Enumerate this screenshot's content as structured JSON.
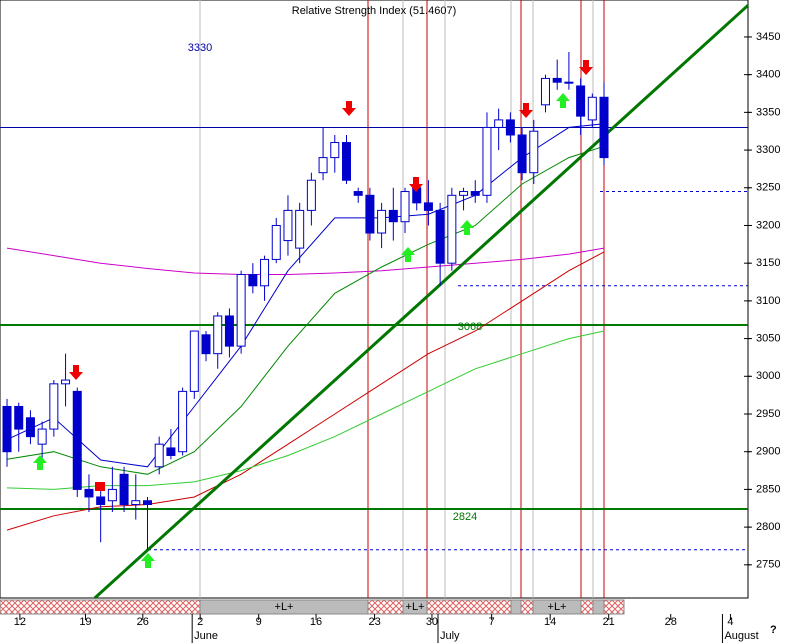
{
  "chart_data": {
    "type": "candlestick",
    "title": "Relative Strength Index (51.4607)",
    "x": [
      0,
      1,
      2,
      3,
      4,
      5,
      6,
      7,
      8,
      9,
      10,
      11,
      12,
      13,
      14,
      15,
      16,
      17,
      18,
      19,
      20,
      21,
      22,
      23,
      24,
      25,
      26,
      27,
      28,
      29,
      30,
      31,
      32,
      33,
      34,
      35,
      36,
      37,
      38,
      39,
      40,
      41,
      42,
      43,
      44,
      45,
      46,
      47,
      48,
      49,
      50,
      51
    ],
    "open": [
      2960,
      2960,
      2945,
      2910,
      2930,
      2990,
      2980,
      2850,
      2840,
      2835,
      2870,
      2830,
      2835,
      2880,
      2905,
      2900,
      2980,
      3055,
      3030,
      3080,
      3040,
      3135,
      3120,
      3155,
      3180,
      3170,
      3220,
      3270,
      3290,
      3310,
      3245,
      3240,
      3190,
      3220,
      3205,
      3250,
      3230,
      3220,
      3150,
      3240,
      3245,
      3240,
      3330,
      3340,
      3320,
      3270,
      3360,
      3395,
      3390,
      3385,
      3340,
      3370
    ],
    "high": [
      2970,
      2965,
      2955,
      2940,
      2995,
      3030,
      2985,
      2870,
      2850,
      2880,
      2880,
      2870,
      2840,
      2920,
      2930,
      2985,
      3060,
      3060,
      3085,
      3090,
      3140,
      3150,
      3160,
      3210,
      3240,
      3230,
      3270,
      3330,
      3320,
      3320,
      3250,
      3250,
      3230,
      3250,
      3250,
      3260,
      3260,
      3230,
      3250,
      3250,
      3260,
      3350,
      3355,
      3350,
      3330,
      3340,
      3400,
      3420,
      3430,
      3395,
      3375,
      3390
    ],
    "low": [
      2880,
      2900,
      2910,
      2890,
      2920,
      2960,
      2840,
      2820,
      2780,
      2820,
      2820,
      2810,
      2770,
      2870,
      2890,
      2895,
      2970,
      3020,
      3010,
      3025,
      3030,
      3110,
      3100,
      3150,
      3160,
      3150,
      3200,
      3260,
      3270,
      3255,
      3230,
      3180,
      3170,
      3180,
      3190,
      3220,
      3200,
      3120,
      3140,
      3220,
      3230,
      3230,
      3300,
      3310,
      3260,
      3255,
      3350,
      3380,
      3380,
      3320,
      3330,
      3280
    ],
    "close": [
      2900,
      2930,
      2920,
      2930,
      2990,
      2995,
      2850,
      2840,
      2830,
      2850,
      2830,
      2835,
      2830,
      2910,
      2895,
      2980,
      3060,
      3030,
      3080,
      3040,
      3135,
      3120,
      3155,
      3200,
      3220,
      3220,
      3260,
      3290,
      3310,
      3260,
      3240,
      3190,
      3220,
      3205,
      3245,
      3230,
      3220,
      3150,
      3240,
      3245,
      3240,
      3330,
      3340,
      3320,
      3270,
      3325,
      3395,
      3390,
      3390,
      3345,
      3370,
      3290
    ],
    "color": "#0000cc",
    "lines": [
      {
        "color": "#cc00cc",
        "x": [
          0,
          4,
          8,
          12,
          16,
          20,
          24,
          28,
          32,
          36,
          40,
          44,
          48,
          51
        ],
        "values": [
          3170,
          3160,
          3150,
          3143,
          3137,
          3135,
          3135,
          3137,
          3140,
          3145,
          3150,
          3155,
          3162,
          3170
        ]
      },
      {
        "color": "#0000cc",
        "x": [
          0,
          4,
          8,
          12,
          16,
          20,
          24,
          28,
          32,
          36,
          40,
          44,
          48,
          51
        ],
        "values": [
          2916,
          2945,
          2889,
          2880,
          2960,
          3040,
          3140,
          3210,
          3210,
          3215,
          3240,
          3290,
          3330,
          3335
        ]
      },
      {
        "color": "#008800",
        "x": [
          0,
          4,
          8,
          12,
          16,
          20,
          24,
          28,
          32,
          36,
          40,
          44,
          48,
          51
        ],
        "values": [
          2890,
          2900,
          2880,
          2870,
          2900,
          2960,
          3040,
          3110,
          3145,
          3175,
          3200,
          3255,
          3290,
          3305
        ]
      },
      {
        "color": "#cc0000",
        "x": [
          0,
          4,
          8,
          12,
          16,
          20,
          24,
          28,
          32,
          36,
          40,
          44,
          48,
          51
        ],
        "values": [
          2796,
          2815,
          2827,
          2830,
          2840,
          2870,
          2910,
          2950,
          2990,
          3030,
          3060,
          3100,
          3140,
          3165
        ]
      },
      {
        "color": "#33cc33",
        "x": [
          0,
          4,
          8,
          12,
          16,
          20,
          24,
          28,
          32,
          36,
          40,
          44,
          48,
          51
        ],
        "values": [
          2852,
          2850,
          2855,
          2855,
          2860,
          2875,
          2895,
          2920,
          2950,
          2980,
          3010,
          3030,
          3050,
          3060
        ]
      }
    ],
    "trendline": {
      "color": "#007700",
      "x": [
        7.5,
        63.3
      ],
      "values": [
        2706,
        3492
      ]
    },
    "levels": [
      {
        "value": 3330,
        "label": "3330",
        "color": "#0000aa"
      },
      {
        "value": 3068,
        "label": "3068",
        "color": "#007700"
      },
      {
        "value": 2824,
        "label": "2824",
        "color": "#007700"
      }
    ],
    "dashed_levels": [
      3245,
      3120,
      2770
    ],
    "xlim": [
      -0.6,
      63.3
    ],
    "ylim": [
      2706,
      3499
    ],
    "yticks": [
      2750,
      2800,
      2850,
      2900,
      2950,
      3000,
      3050,
      3100,
      3150,
      3200,
      3250,
      3300,
      3350,
      3400,
      3450
    ],
    "xticks": [
      {
        "value": 1.1,
        "label": "12"
      },
      {
        "value": 6.7,
        "label": "19"
      },
      {
        "value": 11.6,
        "label": "26"
      },
      {
        "value": 16.5,
        "label": "2"
      },
      {
        "value": 21.5,
        "label": "9"
      },
      {
        "value": 26.4,
        "label": "16"
      },
      {
        "value": 31.4,
        "label": "23"
      },
      {
        "value": 36.3,
        "label": "30"
      },
      {
        "value": 41.4,
        "label": "7"
      },
      {
        "value": 46.4,
        "label": "14"
      },
      {
        "value": 51.4,
        "label": "21"
      },
      {
        "value": 56.7,
        "label": "28"
      },
      {
        "value": 61.8,
        "label": "4"
      }
    ],
    "months": [
      {
        "value": 16.5,
        "label": "June"
      },
      {
        "value": 37.5,
        "label": "July"
      },
      {
        "value": 61.8,
        "label": "August"
      }
    ],
    "strip_labels": [
      "+L+",
      "+L+",
      "+L+"
    ],
    "help": "?"
  }
}
